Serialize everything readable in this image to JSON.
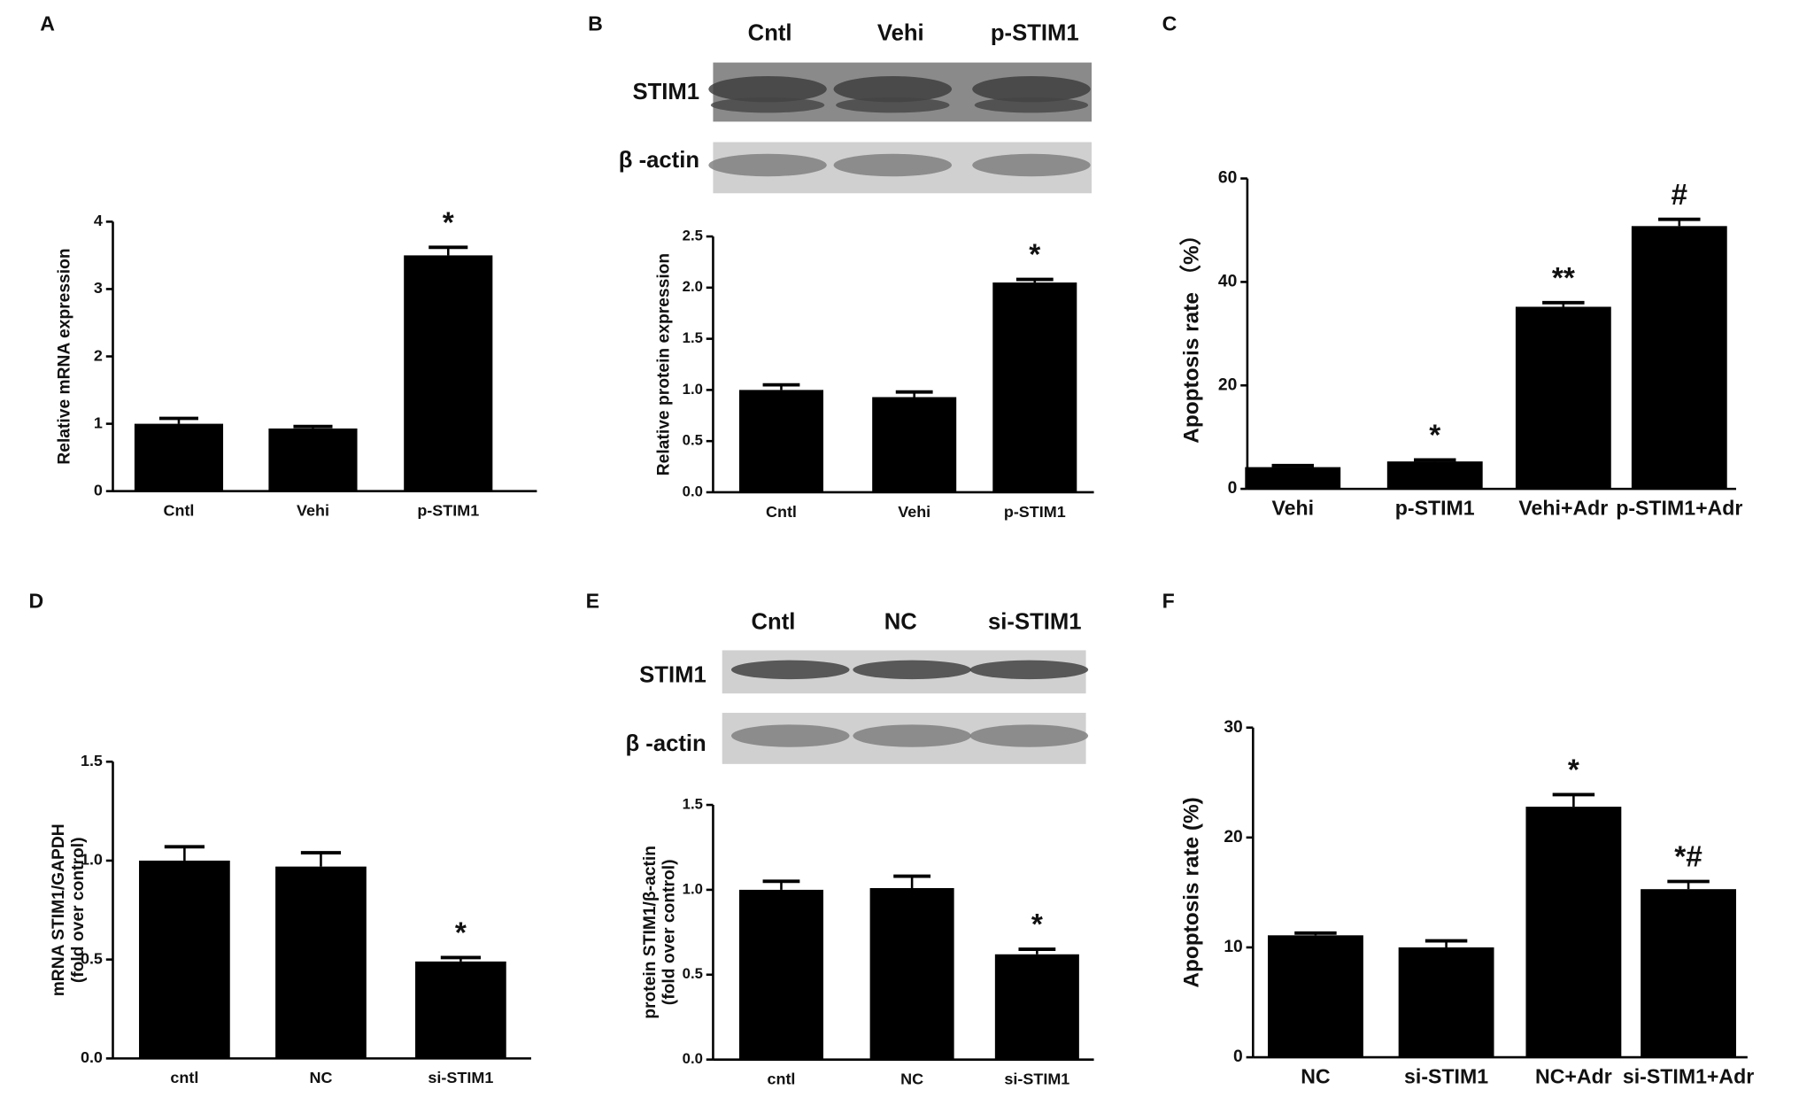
{
  "chart_data": [
    {
      "type": "bar",
      "panel": "A",
      "ylabel": "Relative mRNA expression",
      "categories": [
        "Cntl",
        "Vehi",
        "p-STIM1"
      ],
      "values": [
        1.0,
        0.93,
        3.5
      ],
      "errors": [
        0.08,
        0.03,
        0.12
      ],
      "markers": [
        null,
        null,
        "*"
      ],
      "color": "#000000",
      "ylim": [
        0,
        4
      ],
      "yticks": [
        0,
        1,
        2,
        3,
        4
      ]
    },
    {
      "type": "bar",
      "panel": "B",
      "ylabel": "Relative protein expression",
      "categories": [
        "Cntl",
        "Vehi",
        "p-STIM1"
      ],
      "values": [
        1.0,
        0.93,
        2.05
      ],
      "errors": [
        0.05,
        0.05,
        0.03
      ],
      "markers": [
        null,
        null,
        "*"
      ],
      "color": "#000000",
      "ylim": [
        0,
        2.5
      ],
      "yticks": [
        {
          "value": 0,
          "label": "0.0"
        },
        0.5,
        {
          "value": 1,
          "label": "1.0"
        },
        1.5,
        {
          "value": 2,
          "label": "2.0"
        },
        2.5
      ],
      "blot": {
        "lanes": [
          "Cntl",
          "Vehi",
          "p-STIM1"
        ],
        "rows": [
          "STIM1",
          "β -actin"
        ]
      }
    },
    {
      "type": "bar",
      "panel": "C",
      "ylabel": "Apoptosis rate （%）",
      "categories": [
        "Vehi",
        "p-STIM1",
        "Vehi+Adr",
        "p-STIM1+Adr"
      ],
      "values": [
        4.2,
        5.3,
        35.2,
        50.8
      ],
      "errors": [
        0.3,
        0.3,
        0.8,
        1.3
      ],
      "markers": [
        null,
        "*",
        "**",
        "#"
      ],
      "color": "#000000",
      "ylim": [
        0,
        60
      ],
      "yticks": [
        0,
        20,
        40,
        60
      ]
    },
    {
      "type": "bar",
      "panel": "D",
      "ylabel": [
        "mRNA STIM1/GAPDH",
        "(fold over control)"
      ],
      "categories": [
        "cntl",
        "NC",
        "si-STIM1"
      ],
      "values": [
        1.0,
        0.97,
        0.49
      ],
      "errors": [
        0.07,
        0.07,
        0.02
      ],
      "markers": [
        null,
        null,
        "*"
      ],
      "color": "#000000",
      "ylim": [
        0,
        1.5
      ],
      "yticks": [
        {
          "value": 0,
          "label": "0.0"
        },
        0.5,
        {
          "value": 1,
          "label": "1.0"
        },
        1.5
      ]
    },
    {
      "type": "bar",
      "panel": "E",
      "ylabel": [
        "protein STIM1/β-actin",
        "(fold over control)"
      ],
      "categories": [
        "cntl",
        "NC",
        "si-STIM1"
      ],
      "values": [
        1.0,
        1.01,
        0.62
      ],
      "errors": [
        0.05,
        0.07,
        0.03
      ],
      "markers": [
        null,
        null,
        "*"
      ],
      "color": "#000000",
      "ylim": [
        0,
        1.5
      ],
      "yticks": [
        {
          "value": 0,
          "label": "0.0"
        },
        0.5,
        {
          "value": 1,
          "label": "1.0"
        },
        1.5
      ],
      "blot": {
        "lanes": [
          "Cntl",
          "NC",
          "si-STIM1"
        ],
        "rows": [
          "STIM1",
          "β -actin"
        ]
      }
    },
    {
      "type": "bar",
      "panel": "F",
      "ylabel": "Apoptosis rate (%)",
      "categories": [
        "NC",
        "si-STIM1",
        "NC+Adr",
        "si-STIM1+Adr"
      ],
      "values": [
        11.1,
        10.0,
        22.8,
        15.3
      ],
      "errors": [
        0.2,
        0.6,
        1.1,
        0.7
      ],
      "markers": [
        null,
        null,
        "*",
        "*#"
      ],
      "color": "#000000",
      "ylim": [
        0,
        30
      ],
      "yticks": [
        0,
        10,
        20,
        30
      ]
    }
  ]
}
